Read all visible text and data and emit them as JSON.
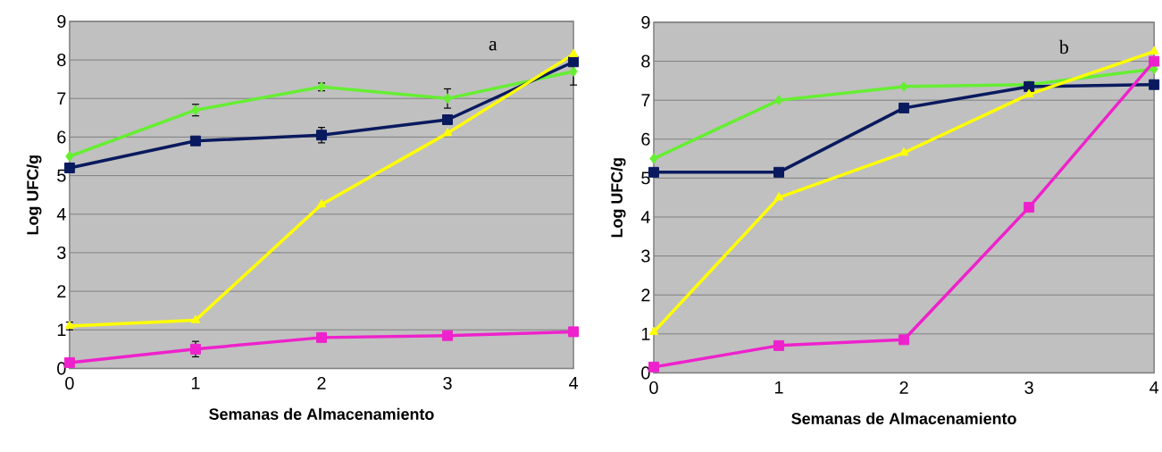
{
  "chart_data": [
    {
      "type": "line",
      "xlabel": "Semanas de Almacenamiento",
      "ylabel": "Log UFC/g",
      "annotations": [
        "a"
      ],
      "x": [
        0,
        1,
        2,
        3,
        4
      ],
      "xlim": [
        0,
        4
      ],
      "xticks": [
        0,
        1,
        2,
        3,
        4
      ],
      "ylim": [
        0,
        9
      ],
      "yticks": [
        0,
        1,
        2,
        3,
        4,
        5,
        6,
        7,
        8,
        9
      ],
      "grid": "y",
      "line_style": "solid",
      "series": [
        {
          "color": "#66ee33",
          "marker": "diamond",
          "values": [
            5.5,
            6.7,
            7.3,
            7.0,
            7.7
          ],
          "errors": [
            null,
            0.15,
            0.1,
            0.25,
            0.35
          ]
        },
        {
          "color": "#0a1a5e",
          "marker": "square",
          "values": [
            5.2,
            5.9,
            6.05,
            6.45,
            7.95
          ],
          "errors": [
            null,
            null,
            0.2,
            null,
            null
          ]
        },
        {
          "color": "#ffff00",
          "marker": "triangle",
          "values": [
            1.1,
            1.25,
            4.25,
            6.1,
            8.15
          ],
          "errors": [
            0.1,
            null,
            null,
            null,
            null
          ]
        },
        {
          "color": "#ee22cc",
          "marker": "square",
          "values": [
            0.15,
            0.5,
            0.8,
            0.85,
            0.95
          ],
          "errors": [
            null,
            0.2,
            null,
            null,
            null
          ]
        }
      ]
    },
    {
      "type": "line",
      "xlabel": "Semanas de Almacenamiento",
      "ylabel": "Log UFC/g",
      "annotations": [
        "b"
      ],
      "x": [
        0,
        1,
        2,
        3,
        4
      ],
      "xlim": [
        0,
        4
      ],
      "xticks": [
        0,
        1,
        2,
        3,
        4
      ],
      "ylim": [
        0,
        9
      ],
      "yticks": [
        0,
        1,
        2,
        3,
        4,
        5,
        6,
        7,
        8,
        9
      ],
      "grid": "y",
      "line_style": "solid",
      "series": [
        {
          "color": "#66ee33",
          "marker": "diamond",
          "values": [
            5.5,
            7.0,
            7.35,
            7.4,
            7.8
          ]
        },
        {
          "color": "#0a1a5e",
          "marker": "square",
          "values": [
            5.15,
            5.15,
            6.8,
            7.35,
            7.4
          ]
        },
        {
          "color": "#ffff00",
          "marker": "triangle",
          "values": [
            1.05,
            4.5,
            5.65,
            7.15,
            8.25
          ]
        },
        {
          "color": "#ee22cc",
          "marker": "square",
          "values": [
            0.15,
            0.7,
            0.85,
            4.25,
            8.0
          ]
        }
      ]
    }
  ]
}
